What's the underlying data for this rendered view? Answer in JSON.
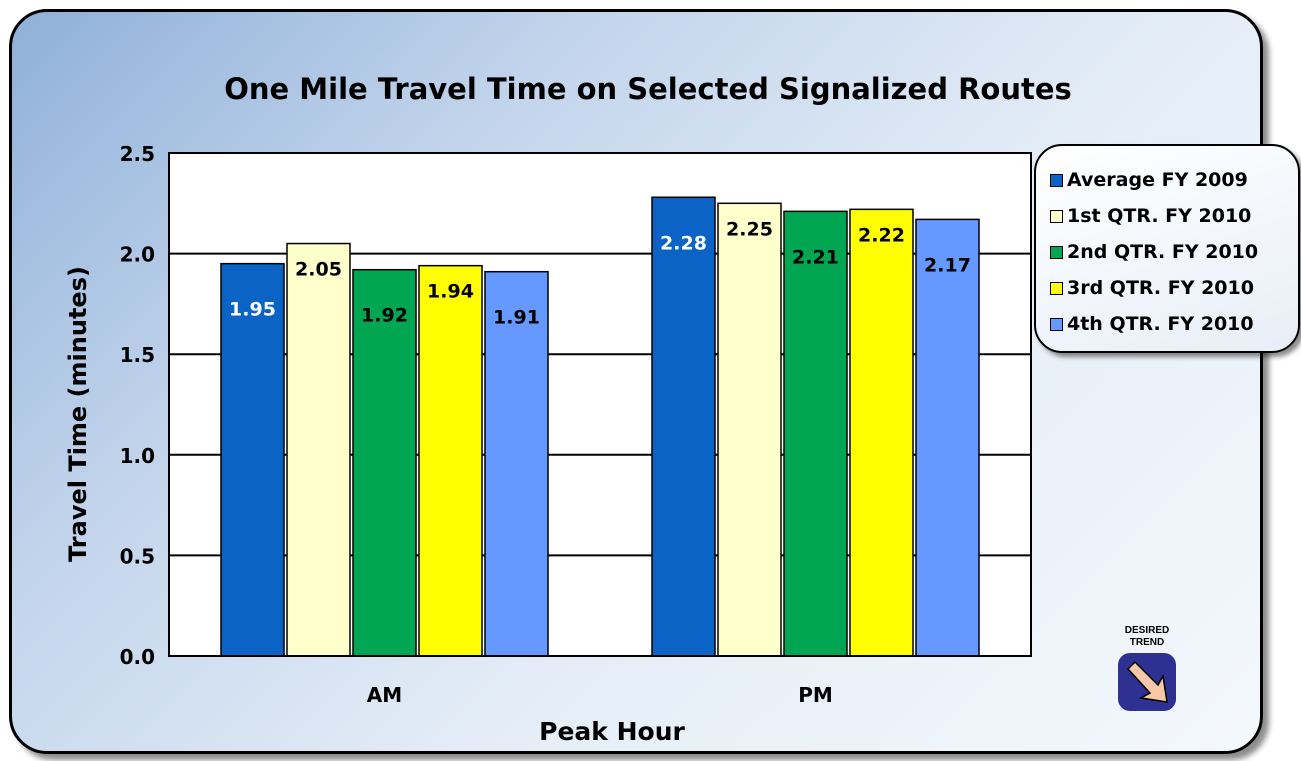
{
  "chart_data": {
    "type": "bar",
    "title": "One Mile Travel Time on Selected Signalized Routes",
    "xlabel": "Peak Hour",
    "ylabel": "Travel Time (minutes)",
    "categories": [
      "AM",
      "PM"
    ],
    "ylim": [
      0,
      2.5
    ],
    "yticks": [
      "0.0",
      "0.5",
      "1.0",
      "1.5",
      "2.0",
      "2.5"
    ],
    "grid": true,
    "legend_position": "right",
    "series": [
      {
        "name": "Average FY 2009",
        "color": "#0b63c6",
        "label_color": "#ffffff",
        "values": [
          1.95,
          2.28
        ]
      },
      {
        "name": "1st QTR. FY 2010",
        "color": "#ffffcc",
        "label_color": "#000000",
        "values": [
          2.05,
          2.25
        ]
      },
      {
        "name": "2nd QTR. FY 2010",
        "color": "#00a651",
        "label_color": "#000000",
        "values": [
          1.92,
          2.21
        ]
      },
      {
        "name": "3rd QTR. FY 2010",
        "color": "#ffff00",
        "label_color": "#000000",
        "values": [
          1.94,
          2.22
        ]
      },
      {
        "name": "4th QTR. FY 2010",
        "color": "#6699ff",
        "label_color": "#000000",
        "values": [
          1.91,
          2.17
        ]
      }
    ]
  },
  "trend_badge": {
    "label": "DESIRED TREND",
    "icon": "arrow-down-right-icon",
    "colors": {
      "background": "#2e3192",
      "arrow": "#f7c8a8"
    }
  }
}
